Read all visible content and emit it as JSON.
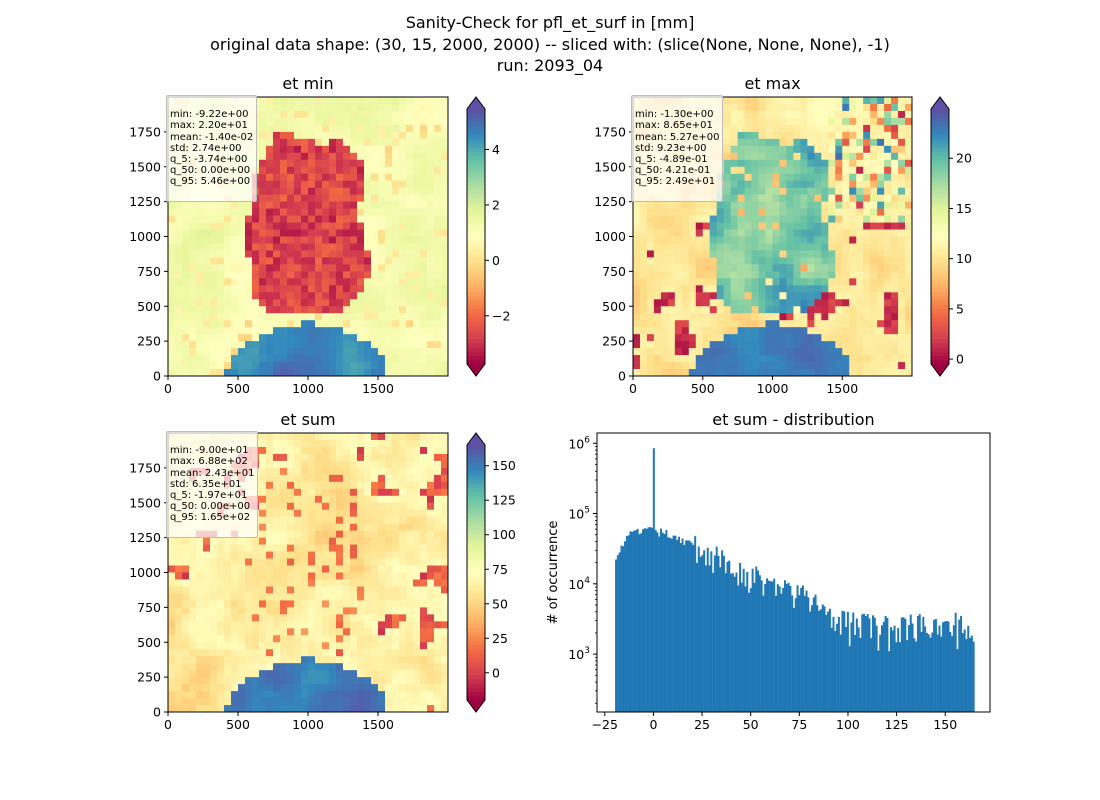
{
  "figure": {
    "title_lines": [
      "Sanity-Check for pfl_et_surf in [mm]",
      "original data shape: (30, 15, 2000, 2000) -- sliced with: (slice(None, None, None), -1)",
      "run: 2093_04"
    ]
  },
  "colors": {
    "hist_bar": "#1f77b4",
    "spectral_stops": [
      "#9e0142",
      "#d53e4f",
      "#f46d43",
      "#fdae61",
      "#fee08b",
      "#ffffbf",
      "#e6f598",
      "#abdda4",
      "#66c2a5",
      "#3288bd",
      "#5e4fa2"
    ]
  },
  "chart_data": [
    {
      "type": "heatmap",
      "id": "et_min",
      "title": "et min",
      "colormap": "Spectral",
      "xlim": [
        0,
        2000
      ],
      "ylim": [
        0,
        2000
      ],
      "xticks": [
        "0",
        "500",
        "1000",
        "1500"
      ],
      "yticks": [
        "0",
        "250",
        "500",
        "750",
        "1000",
        "1250",
        "1500",
        "1750"
      ],
      "clim": [
        -3.74,
        5.46
      ],
      "colorbar_ticks": [
        "−2",
        "0",
        "2",
        "4"
      ],
      "colorbar_tick_values": [
        -2,
        0,
        2,
        4
      ],
      "colorbar_extend": "both",
      "stats": [
        "min: -9.22e+00",
        "max: 2.20e+01",
        "mean: -1.40e-02",
        "std: 2.74e+00",
        "q_5: -3.74e+00",
        "q_50: 0.00e+00",
        "q_95: 5.46e+00"
      ]
    },
    {
      "type": "heatmap",
      "id": "et_max",
      "title": "et max",
      "colormap": "Spectral",
      "xlim": [
        0,
        2000
      ],
      "ylim": [
        0,
        2000
      ],
      "xticks": [
        "0",
        "500",
        "1000",
        "1500"
      ],
      "yticks": [
        "0",
        "250",
        "500",
        "750",
        "1000",
        "1250",
        "1500",
        "1750"
      ],
      "clim": [
        -0.489,
        24.9
      ],
      "colorbar_ticks": [
        "0",
        "5",
        "10",
        "15",
        "20"
      ],
      "colorbar_tick_values": [
        0,
        5,
        10,
        15,
        20
      ],
      "colorbar_extend": "both",
      "stats": [
        "min: -1.30e+00",
        "max: 8.65e+01",
        "mean: 5.27e+00",
        "std: 9.23e+00",
        "q_5: -4.89e-01",
        "q_50: 4.21e-01",
        "q_95: 2.49e+01"
      ]
    },
    {
      "type": "heatmap",
      "id": "et_sum",
      "title": "et sum",
      "colormap": "Spectral",
      "xlim": [
        0,
        2000
      ],
      "ylim": [
        0,
        2000
      ],
      "xticks": [
        "0",
        "500",
        "1000",
        "1500"
      ],
      "yticks": [
        "0",
        "250",
        "500",
        "750",
        "1000",
        "1250",
        "1500",
        "1750"
      ],
      "clim": [
        -19.7,
        165
      ],
      "colorbar_ticks": [
        "0",
        "25",
        "50",
        "75",
        "100",
        "125",
        "150"
      ],
      "colorbar_tick_values": [
        0,
        25,
        50,
        75,
        100,
        125,
        150
      ],
      "colorbar_extend": "both",
      "stats": [
        "min: -9.00e+01",
        "max: 6.88e+02",
        "mean: 2.43e+01",
        "std: 6.35e+01",
        "q_5: -1.97e+01",
        "q_50: 0.00e+00",
        "q_95: 1.65e+02"
      ]
    },
    {
      "type": "bar",
      "id": "et_sum_distribution",
      "title": "et sum - distribution",
      "xlabel": "",
      "ylabel": "# of occurrence",
      "yscale": "log",
      "xlim": [
        -29,
        173
      ],
      "ylim": [
        150,
        1400000
      ],
      "xticks": [
        "−25",
        "0",
        "25",
        "50",
        "75",
        "100",
        "125",
        "150"
      ],
      "xtick_values": [
        -25,
        0,
        25,
        50,
        75,
        100,
        125,
        150
      ],
      "yticks": [
        {
          "base": "10",
          "exp": "3",
          "value": 1000
        },
        {
          "base": "10",
          "exp": "4",
          "value": 10000
        },
        {
          "base": "10",
          "exp": "5",
          "value": 100000
        },
        {
          "base": "10",
          "exp": "6",
          "value": 1000000
        }
      ],
      "bin_range": [
        -19.7,
        165
      ],
      "bins": 200,
      "spike": {
        "x": 0,
        "count": 850000
      },
      "approx_counts": [
        {
          "x": -19.7,
          "count": 25000
        },
        {
          "x": -12,
          "count": 50000
        },
        {
          "x": -5,
          "count": 58000
        },
        {
          "x": 10,
          "count": 50000
        },
        {
          "x": 25,
          "count": 30000
        },
        {
          "x": 50,
          "count": 13000
        },
        {
          "x": 75,
          "count": 7000
        },
        {
          "x": 100,
          "count": 3000
        },
        {
          "x": 125,
          "count": 2500
        },
        {
          "x": 150,
          "count": 3000
        },
        {
          "x": 165,
          "count": 2500
        }
      ]
    }
  ]
}
